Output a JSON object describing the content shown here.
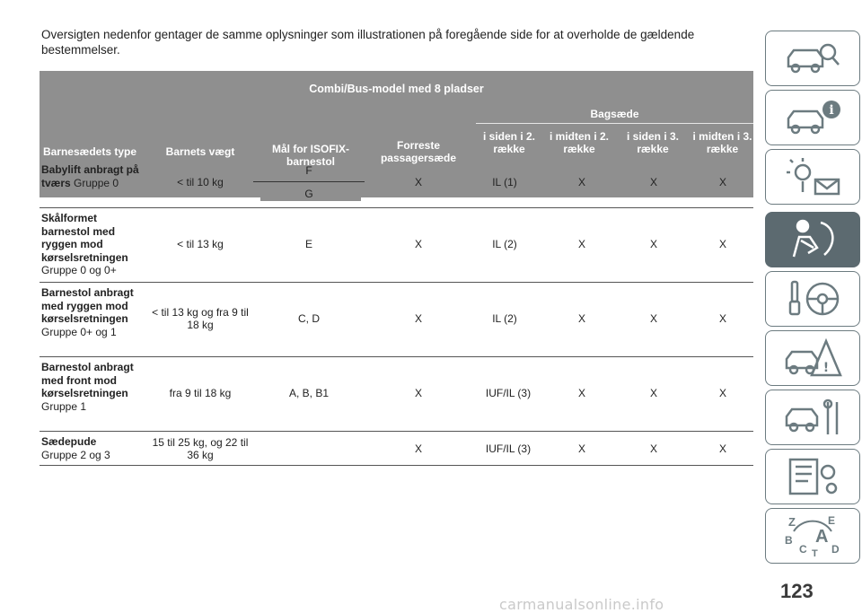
{
  "intro": "Oversigten nedenfor gentager de samme oplysninger som illustrationen på foregående side for at overholde de gældende bestemmelser.",
  "table": {
    "title": "Combi/Bus-model med 8 pladser",
    "headers": {
      "seat_type": "Barnesædets type",
      "weight": "Barnets vægt",
      "isofix": "Mål for ISOFIX-barnestol",
      "front": "Forreste passagersæde",
      "rear_group": "Bagsæde",
      "rear_cols": [
        "i siden i 2. række",
        "i midten i 2. række",
        "i siden i 3. række",
        "i midten i 3. række"
      ]
    },
    "rows": [
      {
        "bold": "Babylift anbragt på tværs",
        "normal": "Gruppe 0",
        "weight": "< til 10 kg",
        "isofix": "F",
        "isofix2": "G",
        "front": "X",
        "side2": "IL (1)",
        "mid2": "X",
        "side3": "X",
        "mid3": "X"
      },
      {
        "bold": "Skålformet barnestol med ryggen mod kørselsretningen",
        "normal": "Gruppe 0 og 0+",
        "weight": "< til 13 kg",
        "isofix": "E",
        "front": "X",
        "side2": "IL (2)",
        "mid2": "X",
        "side3": "X",
        "mid3": "X"
      },
      {
        "bold": "Barnestol anbragt med ryggen mod kørselsretningen",
        "normal": "Gruppe 0+ og 1",
        "weight": "< til 13 kg og fra 9 til 18 kg",
        "isofix": "C, D",
        "front": "X",
        "side2": "IL (2)",
        "mid2": "X",
        "side3": "X",
        "mid3": "X"
      },
      {
        "bold": "Barnestol anbragt med front mod kørselsretningen",
        "normal": "Gruppe 1",
        "weight": "fra 9 til 18 kg",
        "isofix": "A, B, B1",
        "front": "X",
        "side2": "IUF/IL (3)",
        "mid2": "X",
        "side3": "X",
        "mid3": "X"
      },
      {
        "bold": "Sædepude",
        "normal": "Gruppe 2 og 3",
        "weight": "15 til 25 kg, og 22 til 36 kg",
        "isofix": "",
        "front": "X",
        "side2": "IUF/IL (3)",
        "mid2": "X",
        "side3": "X",
        "mid3": "X"
      }
    ]
  },
  "side_tabs": [
    "car-search-icon",
    "car-info-icon",
    "warning-lights-icon",
    "airbag-person-icon",
    "steering-key-icon",
    "car-warning-icon",
    "car-tools-icon",
    "spec-gear-icon",
    "alphabet-index-icon"
  ],
  "page_number": "123",
  "watermark": "carmanualsonline.info",
  "colors": {
    "header_bg": "#8f8f8f",
    "tab_border": "#6c7b80",
    "active_tab": "#5c6a70"
  }
}
